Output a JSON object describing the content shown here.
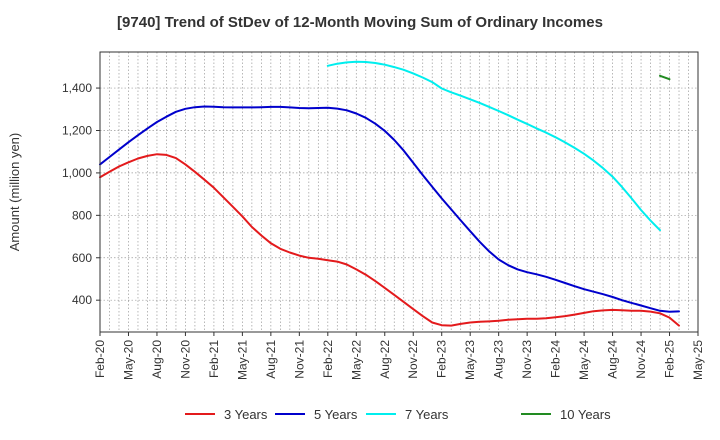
{
  "chart_data": {
    "type": "line",
    "title": "[9740]  Trend of StDev of 12-Month Moving Sum of Ordinary Incomes",
    "ylabel": "Amount (million yen)",
    "xlabel": "",
    "ylim": [
      250,
      1570
    ],
    "yticks": [
      400,
      600,
      800,
      1000,
      1200,
      1400
    ],
    "ytick_labels": [
      "400",
      "600",
      "800",
      "1,000",
      "1,200",
      "1,400"
    ],
    "xlim": [
      "2020-02",
      "2025-05"
    ],
    "xticks": [
      "Feb-20",
      "May-20",
      "Aug-20",
      "Nov-20",
      "Feb-21",
      "May-21",
      "Aug-21",
      "Nov-21",
      "Feb-22",
      "May-22",
      "Aug-22",
      "Nov-22",
      "Feb-23",
      "May-23",
      "Aug-23",
      "Nov-23",
      "Feb-24",
      "May-24",
      "Aug-24",
      "Nov-24",
      "Feb-25",
      "May-25"
    ],
    "grid": true,
    "legend_position": "bottom",
    "series": [
      {
        "name": "3 Years",
        "color": "#e31a1c",
        "points": [
          [
            "2020-02",
            980
          ],
          [
            "2020-03",
            1005
          ],
          [
            "2020-04",
            1030
          ],
          [
            "2020-05",
            1050
          ],
          [
            "2020-06",
            1068
          ],
          [
            "2020-07",
            1080
          ],
          [
            "2020-08",
            1088
          ],
          [
            "2020-09",
            1085
          ],
          [
            "2020-10",
            1070
          ],
          [
            "2020-11",
            1040
          ],
          [
            "2020-12",
            1005
          ],
          [
            "2021-01",
            968
          ],
          [
            "2021-02",
            930
          ],
          [
            "2021-03",
            885
          ],
          [
            "2021-04",
            840
          ],
          [
            "2021-05",
            795
          ],
          [
            "2021-06",
            745
          ],
          [
            "2021-07",
            705
          ],
          [
            "2021-08",
            668
          ],
          [
            "2021-09",
            642
          ],
          [
            "2021-10",
            625
          ],
          [
            "2021-11",
            610
          ],
          [
            "2021-12",
            600
          ],
          [
            "2022-01",
            595
          ],
          [
            "2022-02",
            588
          ],
          [
            "2022-03",
            582
          ],
          [
            "2022-04",
            568
          ],
          [
            "2022-05",
            545
          ],
          [
            "2022-06",
            520
          ],
          [
            "2022-07",
            490
          ],
          [
            "2022-08",
            458
          ],
          [
            "2022-09",
            425
          ],
          [
            "2022-10",
            392
          ],
          [
            "2022-11",
            358
          ],
          [
            "2022-12",
            325
          ],
          [
            "2023-01",
            295
          ],
          [
            "2023-02",
            282
          ],
          [
            "2023-03",
            280
          ],
          [
            "2023-04",
            288
          ],
          [
            "2023-05",
            295
          ],
          [
            "2023-06",
            298
          ],
          [
            "2023-07",
            300
          ],
          [
            "2023-08",
            303
          ],
          [
            "2023-09",
            308
          ],
          [
            "2023-10",
            310
          ],
          [
            "2023-11",
            312
          ],
          [
            "2023-12",
            312
          ],
          [
            "2024-01",
            315
          ],
          [
            "2024-02",
            320
          ],
          [
            "2024-03",
            325
          ],
          [
            "2024-04",
            332
          ],
          [
            "2024-05",
            340
          ],
          [
            "2024-06",
            348
          ],
          [
            "2024-07",
            352
          ],
          [
            "2024-08",
            354
          ],
          [
            "2024-09",
            353
          ],
          [
            "2024-10",
            350
          ],
          [
            "2024-11",
            350
          ],
          [
            "2024-12",
            346
          ],
          [
            "2025-01",
            338
          ],
          [
            "2025-02",
            318
          ],
          [
            "2025-03",
            280
          ]
        ]
      },
      {
        "name": "5 Years",
        "color": "#0000cc",
        "points": [
          [
            "2020-02",
            1040
          ],
          [
            "2020-03",
            1075
          ],
          [
            "2020-04",
            1110
          ],
          [
            "2020-05",
            1145
          ],
          [
            "2020-06",
            1178
          ],
          [
            "2020-07",
            1210
          ],
          [
            "2020-08",
            1240
          ],
          [
            "2020-09",
            1265
          ],
          [
            "2020-10",
            1288
          ],
          [
            "2020-11",
            1302
          ],
          [
            "2020-12",
            1310
          ],
          [
            "2021-01",
            1313
          ],
          [
            "2021-02",
            1312
          ],
          [
            "2021-03",
            1310
          ],
          [
            "2021-04",
            1309
          ],
          [
            "2021-05",
            1309
          ],
          [
            "2021-06",
            1309
          ],
          [
            "2021-07",
            1310
          ],
          [
            "2021-08",
            1311
          ],
          [
            "2021-09",
            1311
          ],
          [
            "2021-10",
            1309
          ],
          [
            "2021-11",
            1306
          ],
          [
            "2021-12",
            1305
          ],
          [
            "2022-01",
            1306
          ],
          [
            "2022-02",
            1307
          ],
          [
            "2022-03",
            1303
          ],
          [
            "2022-04",
            1295
          ],
          [
            "2022-05",
            1280
          ],
          [
            "2022-06",
            1260
          ],
          [
            "2022-07",
            1232
          ],
          [
            "2022-08",
            1198
          ],
          [
            "2022-09",
            1155
          ],
          [
            "2022-10",
            1105
          ],
          [
            "2022-11",
            1048
          ],
          [
            "2022-12",
            990
          ],
          [
            "2023-01",
            935
          ],
          [
            "2023-02",
            880
          ],
          [
            "2023-03",
            828
          ],
          [
            "2023-04",
            776
          ],
          [
            "2023-05",
            725
          ],
          [
            "2023-06",
            675
          ],
          [
            "2023-07",
            630
          ],
          [
            "2023-08",
            592
          ],
          [
            "2023-09",
            565
          ],
          [
            "2023-10",
            545
          ],
          [
            "2023-11",
            532
          ],
          [
            "2023-12",
            522
          ],
          [
            "2024-01",
            510
          ],
          [
            "2024-02",
            496
          ],
          [
            "2024-03",
            481
          ],
          [
            "2024-04",
            466
          ],
          [
            "2024-05",
            452
          ],
          [
            "2024-06",
            440
          ],
          [
            "2024-07",
            428
          ],
          [
            "2024-08",
            415
          ],
          [
            "2024-09",
            400
          ],
          [
            "2024-10",
            387
          ],
          [
            "2024-11",
            375
          ],
          [
            "2024-12",
            362
          ],
          [
            "2025-01",
            350
          ],
          [
            "2025-02",
            345
          ],
          [
            "2025-03",
            347
          ]
        ]
      },
      {
        "name": "7 Years",
        "color": "#00eeee",
        "points": [
          [
            "2022-02",
            1505
          ],
          [
            "2022-03",
            1515
          ],
          [
            "2022-04",
            1521
          ],
          [
            "2022-05",
            1524
          ],
          [
            "2022-06",
            1523
          ],
          [
            "2022-07",
            1518
          ],
          [
            "2022-08",
            1510
          ],
          [
            "2022-09",
            1499
          ],
          [
            "2022-10",
            1486
          ],
          [
            "2022-11",
            1469
          ],
          [
            "2022-12",
            1450
          ],
          [
            "2023-01",
            1428
          ],
          [
            "2023-02",
            1398
          ],
          [
            "2023-03",
            1380
          ],
          [
            "2023-04",
            1364
          ],
          [
            "2023-05",
            1347
          ],
          [
            "2023-06",
            1330
          ],
          [
            "2023-07",
            1311
          ],
          [
            "2023-08",
            1292
          ],
          [
            "2023-09",
            1272
          ],
          [
            "2023-10",
            1251
          ],
          [
            "2023-11",
            1231
          ],
          [
            "2023-12",
            1210
          ],
          [
            "2024-01",
            1190
          ],
          [
            "2024-02",
            1168
          ],
          [
            "2024-03",
            1144
          ],
          [
            "2024-04",
            1118
          ],
          [
            "2024-05",
            1090
          ],
          [
            "2024-06",
            1058
          ],
          [
            "2024-07",
            1022
          ],
          [
            "2024-08",
            982
          ],
          [
            "2024-09",
            933
          ],
          [
            "2024-10",
            880
          ],
          [
            "2024-11",
            825
          ],
          [
            "2024-12",
            775
          ],
          [
            "2025-01",
            730
          ]
        ]
      },
      {
        "name": "10 Years",
        "color": "#228b22",
        "points": [
          [
            "2025-01",
            1458
          ],
          [
            "2025-02",
            1442
          ]
        ]
      }
    ]
  }
}
